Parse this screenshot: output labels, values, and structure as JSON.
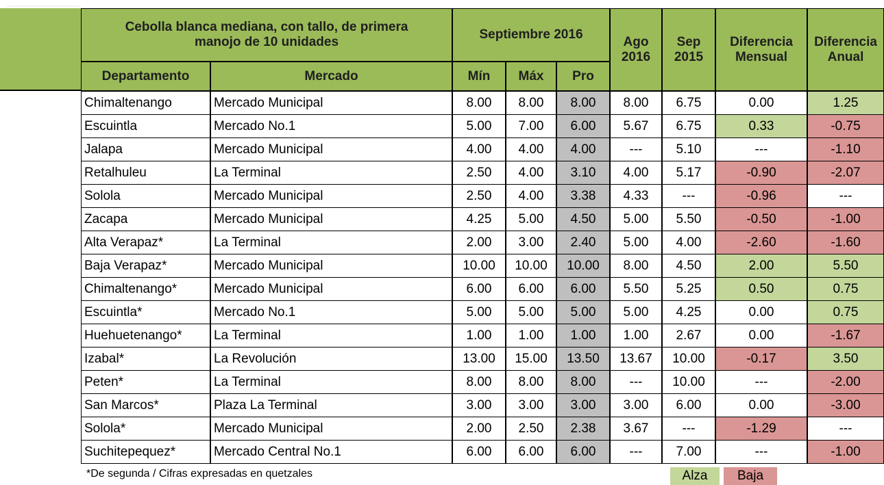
{
  "header": {
    "title": "Cebolla blanca mediana, con tallo,  de primera manojo de 10 unidades",
    "period": "Septiembre 2016",
    "columns": [
      "Departamento",
      "Mercado",
      "Mín",
      "Máx",
      "Pro",
      "Ago 2016",
      "Sep 2015",
      "Diferencia Mensual",
      "Diferencia Anual"
    ]
  },
  "table": {
    "rows": [
      [
        "Chimaltenango",
        "Mercado Municipal",
        "8.00",
        "8.00",
        "8.00",
        "8.00",
        "6.75",
        "0.00",
        "1.25"
      ],
      [
        "Escuintla",
        "Mercado No.1",
        "5.00",
        "7.00",
        "6.00",
        "5.67",
        "6.75",
        "0.33",
        "-0.75"
      ],
      [
        "Jalapa",
        "Mercado Municipal",
        "4.00",
        "4.00",
        "4.00",
        "---",
        "5.10",
        "---",
        "-1.10"
      ],
      [
        "Retalhuleu",
        "La Terminal",
        "2.50",
        "4.00",
        "3.10",
        "4.00",
        "5.17",
        "-0.90",
        "-2.07"
      ],
      [
        "Solola",
        "Mercado Municipal",
        "2.50",
        "4.00",
        "3.38",
        "4.33",
        "---",
        "-0.96",
        "---"
      ],
      [
        "Zacapa",
        "Mercado Municipal",
        "4.25",
        "5.00",
        "4.50",
        "5.00",
        "5.50",
        "-0.50",
        "-1.00"
      ],
      [
        "Alta Verapaz*",
        "La Terminal",
        "2.00",
        "3.00",
        "2.40",
        "5.00",
        "4.00",
        "-2.60",
        "-1.60"
      ],
      [
        "Baja Verapaz*",
        "Mercado Municipal",
        "10.00",
        "10.00",
        "10.00",
        "8.00",
        "4.50",
        "2.00",
        "5.50"
      ],
      [
        "Chimaltenango*",
        "Mercado Municipal",
        "6.00",
        "6.00",
        "6.00",
        "5.50",
        "5.25",
        "0.50",
        "0.75"
      ],
      [
        "Escuintla*",
        "Mercado No.1",
        "5.00",
        "5.00",
        "5.00",
        "5.00",
        "4.25",
        "0.00",
        "0.75"
      ],
      [
        "Huehuetenango*",
        "La Terminal",
        "1.00",
        "1.00",
        "1.00",
        "1.00",
        "2.67",
        "0.00",
        "-1.67"
      ],
      [
        "Izabal*",
        "La Revolución",
        "13.00",
        "15.00",
        "13.50",
        "13.67",
        "10.00",
        "-0.17",
        "3.50"
      ],
      [
        "Peten*",
        "La Terminal",
        "8.00",
        "8.00",
        "8.00",
        "---",
        "10.00",
        "---",
        "-2.00"
      ],
      [
        "San Marcos*",
        "Plaza La Terminal",
        "3.00",
        "3.00",
        "3.00",
        "3.00",
        "6.00",
        "0.00",
        "-3.00"
      ],
      [
        "Solola*",
        "Mercado Municipal",
        "2.00",
        "2.50",
        "2.38",
        "3.67",
        "---",
        "-1.29",
        "---"
      ],
      [
        "Suchitepequez*",
        "Mercado Central No.1",
        "6.00",
        "6.00",
        "6.00",
        "---",
        "7.00",
        "---",
        "-1.00"
      ]
    ],
    "diff_colors": [
      [
        null,
        "up"
      ],
      [
        "up",
        "down"
      ],
      [
        null,
        "down"
      ],
      [
        "down",
        "down"
      ],
      [
        "down",
        null
      ],
      [
        "down",
        "down"
      ],
      [
        "down",
        "down"
      ],
      [
        "up",
        "up"
      ],
      [
        "up",
        "up"
      ],
      [
        null,
        "up"
      ],
      [
        null,
        "down"
      ],
      [
        "down",
        "up"
      ],
      [
        null,
        "down"
      ],
      [
        null,
        "down"
      ],
      [
        "down",
        null
      ],
      [
        null,
        "down"
      ]
    ]
  },
  "legend": {
    "up": {
      "label": "Alza",
      "color": "#c4d79b"
    },
    "down": {
      "label": "Baja",
      "color": "#da9694"
    }
  },
  "footnote": "*De segunda / Cifras expresadas en quetzales",
  "header_color": "#9bbb59",
  "pro_color": "#bfbfbf"
}
